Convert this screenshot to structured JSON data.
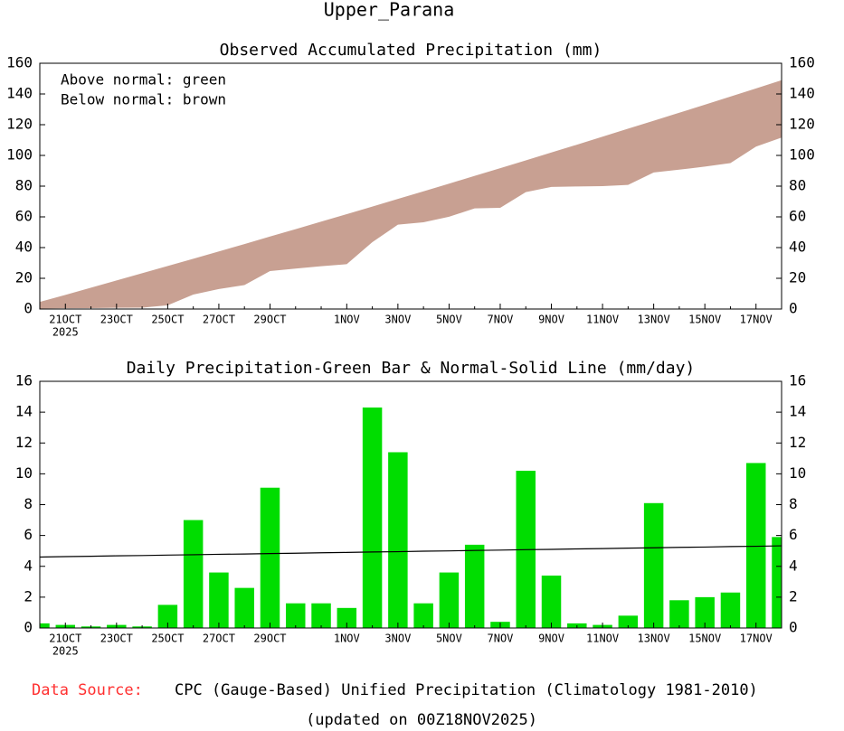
{
  "title": "Upper_Parana",
  "chart_data": [
    {
      "type": "band",
      "title": "Observed Accumulated Precipitation (mm)",
      "annotations": [
        "Above normal: green",
        "Below normal: brown"
      ],
      "categories": [
        null,
        "21OCT",
        null,
        "23OCT",
        null,
        "25OCT",
        null,
        "27OCT",
        null,
        "29OCT",
        null,
        null,
        "1NOV",
        null,
        "3NOV",
        null,
        "5NOV",
        null,
        "7NOV",
        null,
        "9NOV",
        null,
        "11NOV",
        null,
        "13NOV",
        null,
        "15NOV",
        null,
        "17NOV",
        null
      ],
      "year": "2025",
      "series": [
        {
          "name": "Normal",
          "color": "#c8a092",
          "values": [
            4.6,
            9.2,
            13.9,
            18.6,
            23.3,
            28.0,
            32.7,
            37.5,
            42.3,
            47.2,
            52.0,
            56.9,
            61.8,
            66.7,
            71.7,
            76.6,
            81.6,
            86.7,
            91.7,
            96.8,
            101.9,
            107.0,
            112.2,
            117.4,
            122.6,
            127.8,
            133.0,
            138.3,
            143.6,
            149.0
          ]
        },
        {
          "name": "Observed",
          "color": "#00d800",
          "values": [
            0.3,
            0.5,
            0.6,
            0.8,
            0.9,
            2.4,
            9.4,
            13.0,
            15.6,
            24.7,
            26.3,
            27.9,
            29.2,
            43.5,
            54.9,
            56.5,
            60.1,
            65.5,
            65.9,
            76.1,
            79.5,
            79.8,
            80.0,
            80.8,
            88.9,
            90.7,
            92.7,
            95.0,
            105.7,
            111.6
          ]
        }
      ],
      "ylim": [
        0,
        160
      ],
      "yticks": [
        0,
        20,
        40,
        60,
        80,
        100,
        120,
        140,
        160
      ]
    },
    {
      "type": "bar",
      "title": "Daily Precipitation-Green Bar & Normal-Solid Line (mm/day)",
      "categories": [
        null,
        "21OCT",
        null,
        "23OCT",
        null,
        "25OCT",
        null,
        "27OCT",
        null,
        "29OCT",
        null,
        null,
        "1NOV",
        null,
        "3NOV",
        null,
        "5NOV",
        null,
        "7NOV",
        null,
        "9NOV",
        null,
        "11NOV",
        null,
        "13NOV",
        null,
        "15NOV",
        null,
        "17NOV",
        null
      ],
      "year": "2025",
      "series": [
        {
          "name": "Daily",
          "type": "bar",
          "color": "#00dd00",
          "values": [
            0.3,
            0.2,
            0.1,
            0.2,
            0.1,
            1.5,
            7.0,
            3.6,
            2.6,
            9.1,
            1.6,
            1.6,
            1.3,
            14.3,
            11.4,
            1.6,
            3.6,
            5.4,
            0.4,
            10.2,
            3.4,
            0.3,
            0.2,
            0.8,
            8.1,
            1.8,
            2.0,
            2.3,
            10.7,
            5.9
          ]
        },
        {
          "name": "Normal",
          "type": "line",
          "color": "#000000",
          "values": [
            4.6,
            4.63,
            4.65,
            4.68,
            4.7,
            4.73,
            4.75,
            4.78,
            4.8,
            4.83,
            4.85,
            4.88,
            4.9,
            4.93,
            4.95,
            4.98,
            5.0,
            5.03,
            5.05,
            5.08,
            5.1,
            5.13,
            5.15,
            5.18,
            5.2,
            5.23,
            5.25,
            5.28,
            5.3,
            5.33
          ]
        }
      ],
      "ylim": [
        0,
        16
      ],
      "yticks": [
        0,
        2,
        4,
        6,
        8,
        10,
        12,
        14,
        16
      ]
    }
  ],
  "footer": {
    "source_label": "Data Source:",
    "source": "CPC (Gauge-Based) Unified Precipitation (Climatology 1981-2010)",
    "updated": "(updated on 00Z18NOV2025)"
  }
}
